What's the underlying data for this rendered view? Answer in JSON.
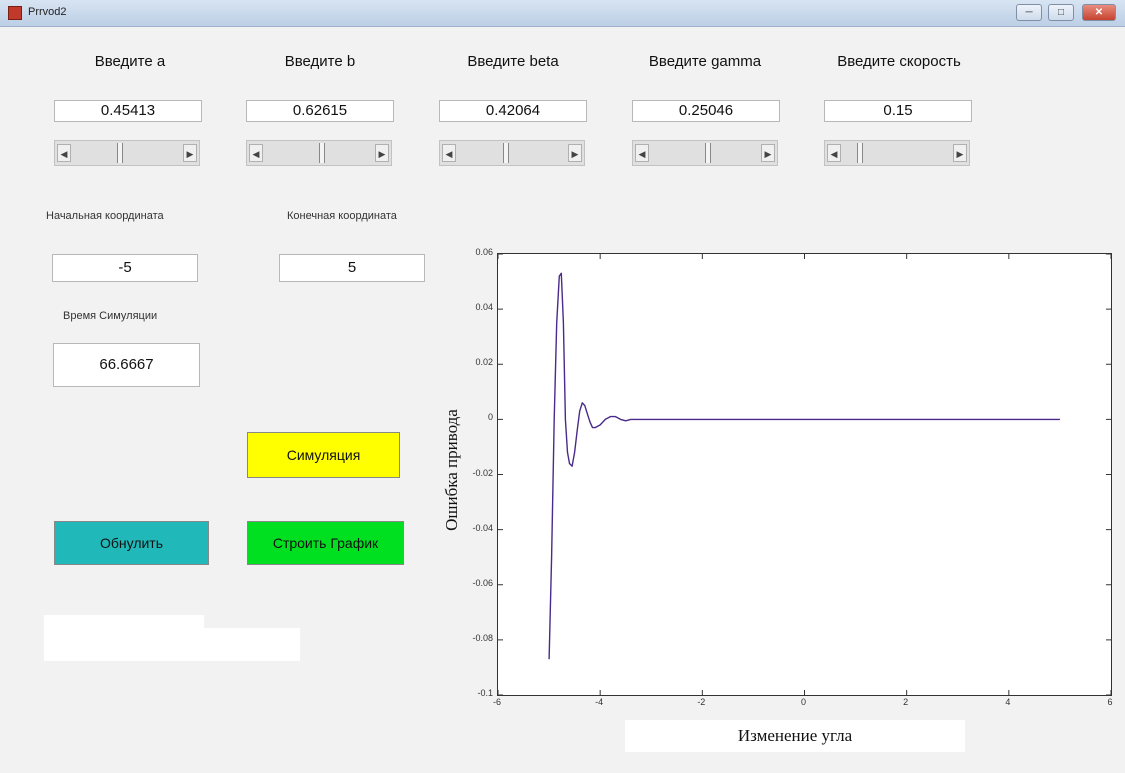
{
  "window": {
    "title": "Prrvod2",
    "controls": [
      "minimize-icon",
      "maximize-icon",
      "close-icon"
    ]
  },
  "params": [
    {
      "label": "Введите a",
      "value": "0.45413",
      "slider": 0.45
    },
    {
      "label": "Введите b",
      "value": "0.62615",
      "slider": 0.63
    },
    {
      "label": "Введите beta",
      "value": "0.42064",
      "slider": 0.42
    },
    {
      "label": "Введите gamma",
      "value": "0.25046",
      "slider": 0.5
    },
    {
      "label": "Введите скорость",
      "value": "0.15",
      "slider": 0.15
    }
  ],
  "start": {
    "label": "Начальная координата",
    "value": "-5"
  },
  "end": {
    "label": "Конечная координата",
    "value": "5"
  },
  "simtime": {
    "label": "Время Симуляции",
    "value": "66.6667"
  },
  "buttons": {
    "simulate": "Симуляция",
    "reset": "Обнулить",
    "plot": "Строить График"
  },
  "colors": {
    "simulate": "#ffff00",
    "reset": "#20b8b8",
    "plot": "#00e020",
    "line": "#4a2a8a"
  },
  "chart_data": {
    "type": "line",
    "xlabel": "Изменение угла",
    "ylabel": "Ошибка привода",
    "xlim": [
      -6,
      6
    ],
    "ylim": [
      -0.1,
      0.06
    ],
    "xticks": [
      "-6",
      "-4",
      "-2",
      "0",
      "2",
      "4",
      "6"
    ],
    "yticks": [
      "0.06",
      "0.04",
      "0.02",
      "0",
      "-0.02",
      "-0.04",
      "-0.06",
      "-0.08",
      "-0.1"
    ],
    "grid": false,
    "series": [
      {
        "x": [
          -5.0,
          -4.95,
          -4.9,
          -4.85,
          -4.8,
          -4.76,
          -4.72,
          -4.68,
          -4.64,
          -4.6,
          -4.55,
          -4.5,
          -4.45,
          -4.4,
          -4.35,
          -4.3,
          -4.25,
          -4.2,
          -4.15,
          -4.1,
          -4.0,
          -3.9,
          -3.8,
          -3.7,
          -3.6,
          -3.5,
          -3.4,
          -3.2,
          -3.0,
          -2.0,
          0.0,
          2.0,
          4.0,
          5.0
        ],
        "y": [
          -0.087,
          -0.05,
          0.0,
          0.035,
          0.052,
          0.053,
          0.035,
          0.0,
          -0.012,
          -0.016,
          -0.017,
          -0.012,
          -0.004,
          0.003,
          0.006,
          0.005,
          0.002,
          -0.001,
          -0.003,
          -0.003,
          -0.002,
          0.0,
          0.001,
          0.001,
          0.0,
          -0.0005,
          0.0,
          0.0,
          0.0,
          0.0,
          0.0,
          0.0,
          0.0,
          0.0
        ]
      }
    ]
  }
}
